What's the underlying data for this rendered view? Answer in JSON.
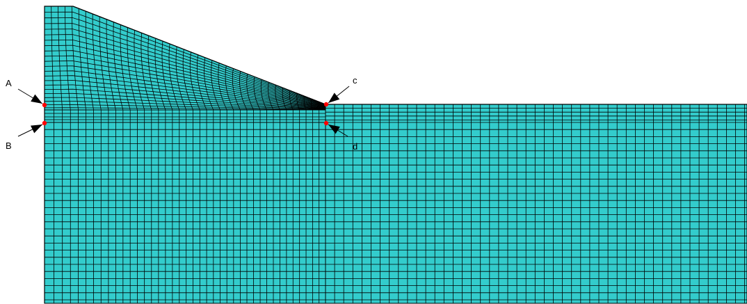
{
  "diagram": {
    "description_type": "finite-element-mesh",
    "colors": {
      "background": "#ffffff",
      "mesh_fill": "#33cccc",
      "mesh_line": "#000000",
      "node_marker": "#ff0000",
      "arrow": "#000000"
    },
    "points": [
      {
        "id": "A",
        "label": "A"
      },
      {
        "id": "B",
        "label": "B"
      },
      {
        "id": "c",
        "label": "c"
      },
      {
        "id": "d",
        "label": "d"
      }
    ]
  }
}
